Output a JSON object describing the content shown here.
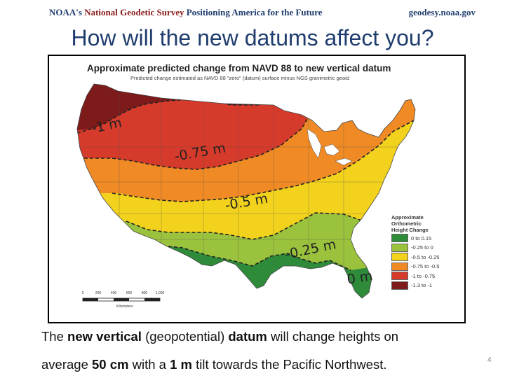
{
  "header": {
    "org_part1": "NOAA's ",
    "org_part2": "National Geodetic Survey",
    "org_part3": " Positioning America for the Future",
    "site": "geodesy.noaa.gov"
  },
  "slide_title": "How will the new datums affect you?",
  "map": {
    "title": "Approximate predicted change from NAVD 88 to new vertical datum",
    "subtitle": "Predicted change estimated as NAVD 88 \"zero\" (datum) surface minus NGS gravimetric geoid",
    "contour_labels": [
      "-1 m",
      "-0.75 m",
      "-0.5 m",
      "-0.25 m",
      "0 m"
    ],
    "legend": {
      "title_line1": "Approximate",
      "title_line2": "Orthometric",
      "title_line3": "Height Change",
      "items": [
        {
          "label": "0 to 0.15",
          "color": "#2e8b3a"
        },
        {
          "label": "-0.25 to 0",
          "color": "#9ac23c"
        },
        {
          "label": "-0.5 to -0.25",
          "color": "#f2d21c"
        },
        {
          "label": "-0.75 to -0.5",
          "color": "#f08a24"
        },
        {
          "label": "-1 to -0.75",
          "color": "#d63a2a"
        },
        {
          "label": "-1.3 to -1",
          "color": "#7d1a1a"
        }
      ]
    },
    "scale": {
      "ticks": [
        "0",
        "200",
        "400",
        "600",
        "800",
        "1,000"
      ],
      "unit": "Kilometers"
    }
  },
  "bottom_text": {
    "l1_a": "The ",
    "l1_b": "new vertical",
    "l1_c": " (geopotential) ",
    "l1_d": "datum",
    "l1_e": " will change heights on",
    "l2_a": "average ",
    "l2_b": "50 cm",
    "l2_c": " with a ",
    "l2_d": "1 m",
    "l2_e": " tilt towards the Pacific Northwest."
  },
  "page_number": "4"
}
